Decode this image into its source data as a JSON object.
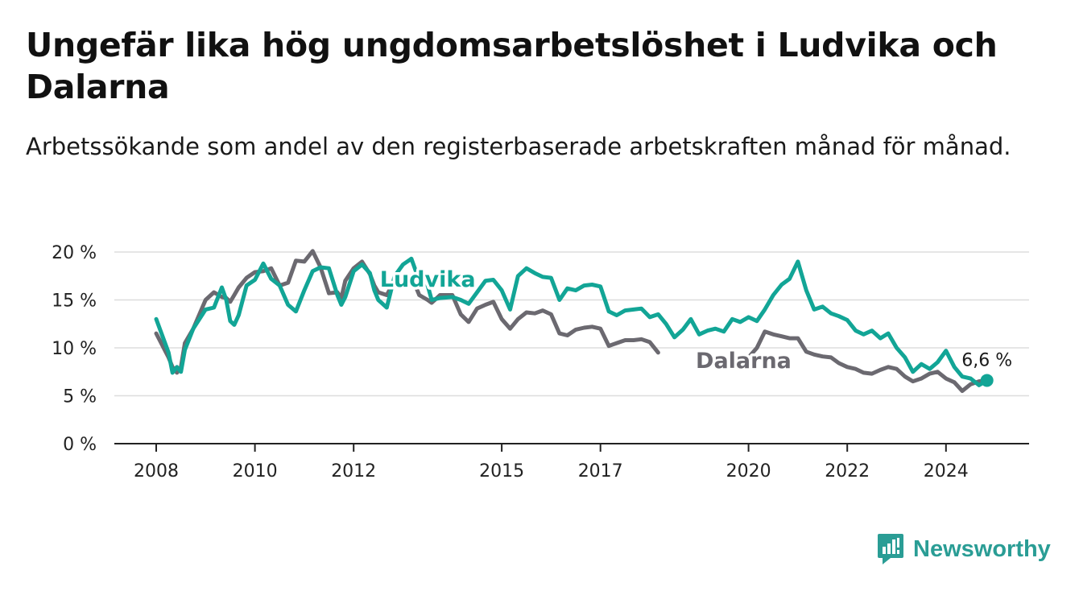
{
  "title": "Ungefär lika hög ungdomsarbetslöshet i Ludvika och Dalarna",
  "subtitle": "Arbetssökande som andel av den registerbaserade arbetskraften månad för månad.",
  "brand": {
    "name": "Newsworthy",
    "icon": "newsworthy-logo-icon"
  },
  "colors": {
    "ludvika": "#12a596",
    "dalarna": "#6b6970",
    "grid": "#dddddd",
    "axis": "#222222"
  },
  "chart_data": {
    "type": "line",
    "title": "Ungefär lika hög ungdomsarbetslöshet i Ludvika och Dalarna",
    "subtitle": "Arbetssökande som andel av den registerbaserade arbetskraften månad för månad.",
    "xlabel": "",
    "ylabel": "",
    "xlim": [
      2007.8,
      2025.5
    ],
    "ylim": [
      0,
      20
    ],
    "yticks": [
      0,
      5,
      10,
      15,
      20
    ],
    "ytick_labels": [
      "0 %",
      "5 %",
      "10 %",
      "15 %",
      "20 %"
    ],
    "xticks": [
      2008,
      2010,
      2012,
      2015,
      2017,
      2020,
      2022,
      2024
    ],
    "xtick_labels": [
      "2008",
      "2010",
      "2012",
      "2015",
      "2017",
      "2020",
      "2022",
      "2024"
    ],
    "grid": true,
    "series": [
      {
        "name": "Ludvika",
        "color": "#12a596",
        "x": [
          2008.0,
          2008.25,
          2008.33,
          2008.42,
          2008.5,
          2008.58,
          2008.75,
          2009.0,
          2009.17,
          2009.33,
          2009.42,
          2009.5,
          2009.58,
          2009.67,
          2009.83,
          2010.0,
          2010.17,
          2010.33,
          2010.5,
          2010.67,
          2010.83,
          2011.0,
          2011.17,
          2011.33,
          2011.5,
          2011.67,
          2011.75,
          2011.83,
          2012.0,
          2012.17,
          2012.33,
          2012.42,
          2012.5,
          2012.67,
          2012.83,
          2013.0,
          2013.17,
          2013.33,
          2013.5,
          2013.58,
          2013.75,
          2014.0,
          2014.17,
          2014.33,
          2014.5,
          2014.67,
          2014.83,
          2015.0,
          2015.17,
          2015.33,
          2015.5,
          2015.67,
          2015.83,
          2016.0,
          2016.17,
          2016.33,
          2016.5,
          2016.67,
          2016.83,
          2017.0,
          2017.17,
          2017.33,
          2017.5,
          2017.67,
          2017.83,
          2018.0,
          2018.17,
          2018.33,
          2018.5,
          2018.67,
          2018.83,
          2019.0,
          2019.17,
          2019.33,
          2019.5,
          2019.67,
          2019.83,
          2020.0,
          2020.17,
          2020.33,
          2020.5,
          2020.67,
          2020.83,
          2021.0,
          2021.17,
          2021.33,
          2021.5,
          2021.67,
          2021.83,
          2022.0,
          2022.17,
          2022.33,
          2022.5,
          2022.67,
          2022.83,
          2023.0,
          2023.17,
          2023.33,
          2023.5,
          2023.67,
          2023.83,
          2024.0,
          2024.17,
          2024.33,
          2024.5,
          2024.67,
          2024.83
        ],
        "values": [
          13.0,
          9.5,
          7.4,
          8.0,
          7.5,
          9.8,
          12.0,
          14.0,
          14.2,
          16.3,
          15.0,
          12.8,
          12.4,
          13.4,
          16.5,
          17.1,
          18.8,
          17.2,
          16.5,
          14.5,
          13.8,
          16.0,
          18.0,
          18.4,
          18.3,
          15.5,
          14.5,
          15.3,
          18.0,
          18.7,
          17.8,
          16.0,
          15.0,
          14.2,
          17.5,
          18.7,
          19.3,
          17.0,
          16.5,
          15.0,
          15.2,
          15.3,
          15.0,
          14.6,
          15.8,
          17.0,
          17.1,
          16.0,
          14.0,
          17.5,
          18.3,
          17.8,
          17.4,
          17.3,
          15.0,
          16.2,
          16.0,
          16.5,
          16.6,
          16.4,
          13.8,
          13.4,
          13.9,
          14.0,
          14.1,
          13.2,
          13.5,
          12.5,
          11.1,
          11.9,
          13.0,
          11.4,
          11.8,
          12.0,
          11.7,
          13.0,
          12.7,
          13.2,
          12.8,
          14.0,
          15.5,
          16.6,
          17.2,
          19.0,
          16.0,
          14.0,
          14.3,
          13.6,
          13.3,
          12.9,
          11.8,
          11.4,
          11.8,
          11.0,
          11.5,
          10.0,
          9.0,
          7.5,
          8.3,
          7.8,
          8.5,
          9.7,
          8.0,
          7.0,
          6.8,
          6.1,
          6.6
        ]
      },
      {
        "name": "Dalarna",
        "color": "#6b6970",
        "x": [
          2008.0,
          2008.25,
          2008.33,
          2008.42,
          2008.5,
          2008.58,
          2008.75,
          2009.0,
          2009.17,
          2009.33,
          2009.42,
          2009.5,
          2009.58,
          2009.67,
          2009.83,
          2010.0,
          2010.17,
          2010.33,
          2010.5,
          2010.67,
          2010.83,
          2011.0,
          2011.17,
          2011.33,
          2011.5,
          2011.67,
          2011.75,
          2011.83,
          2012.0,
          2012.17,
          2012.33,
          2012.42,
          2012.5,
          2012.67,
          2012.83,
          2013.0,
          2013.17,
          2013.33,
          2013.5,
          2013.58,
          2013.75,
          2014.0,
          2014.17,
          2014.33,
          2014.5,
          2014.67,
          2014.83,
          2015.0,
          2015.17,
          2015.33,
          2015.5,
          2015.67,
          2015.83,
          2016.0,
          2016.17,
          2016.33,
          2016.5,
          2016.67,
          2016.83,
          2017.0,
          2017.17,
          2017.33,
          2017.5,
          2017.67,
          2017.83,
          2018.0,
          2018.17,
          2018.33,
          2018.5,
          2018.67,
          2018.83,
          2019.0,
          2019.17,
          2019.33,
          2019.5,
          2019.67,
          2019.83,
          2020.0,
          2020.17,
          2020.33,
          2020.5,
          2020.67,
          2020.83,
          2021.0,
          2021.17,
          2021.33,
          2021.5,
          2021.67,
          2021.83,
          2022.0,
          2022.17,
          2022.33,
          2022.5,
          2022.67,
          2022.83,
          2023.0,
          2023.17,
          2023.33,
          2023.5,
          2023.67,
          2023.83,
          2024.0,
          2024.17,
          2024.33,
          2024.5,
          2024.67,
          2024.83
        ],
        "values": [
          11.5,
          9.0,
          8.0,
          7.4,
          8.0,
          10.5,
          12.0,
          15.0,
          15.8,
          15.3,
          15.2,
          14.8,
          15.5,
          16.3,
          17.3,
          17.9,
          18.0,
          18.3,
          16.5,
          16.8,
          19.1,
          19.0,
          20.1,
          18.4,
          15.7,
          15.8,
          15.2,
          17.0,
          18.3,
          19.0,
          17.7,
          16.5,
          15.8,
          15.5,
          17.0,
          17.6,
          17.5,
          15.5,
          15.0,
          14.7,
          15.5,
          15.5,
          13.5,
          12.7,
          14.1,
          14.5,
          14.8,
          13.0,
          12.0,
          13.0,
          13.7,
          13.6,
          13.9,
          13.5,
          11.5,
          11.3,
          11.9,
          12.1,
          12.2,
          12.0,
          10.2,
          10.5,
          10.8,
          10.8,
          10.9,
          10.6,
          9.5,
          null,
          null,
          null,
          null,
          null,
          null,
          null,
          null,
          null,
          null,
          9.0,
          10.0,
          11.7,
          11.4,
          11.2,
          11.0,
          11.0,
          9.6,
          9.3,
          9.1,
          9.0,
          8.4,
          8.0,
          7.8,
          7.4,
          7.3,
          7.7,
          8.0,
          7.8,
          7.0,
          6.5,
          6.8,
          7.3,
          7.5,
          6.8,
          6.4,
          5.5,
          6.2,
          6.5,
          6.6
        ]
      }
    ],
    "annotations": [
      {
        "text": "Ludvika",
        "series": "Ludvika",
        "x": 2013.5,
        "y": 16.4
      },
      {
        "text": "Dalarna",
        "series": "Dalarna",
        "x": 2019.9,
        "y": 7.9
      },
      {
        "text": "6,6 %",
        "x": 2024.83,
        "y": 6.6
      }
    ],
    "legend": "none"
  }
}
